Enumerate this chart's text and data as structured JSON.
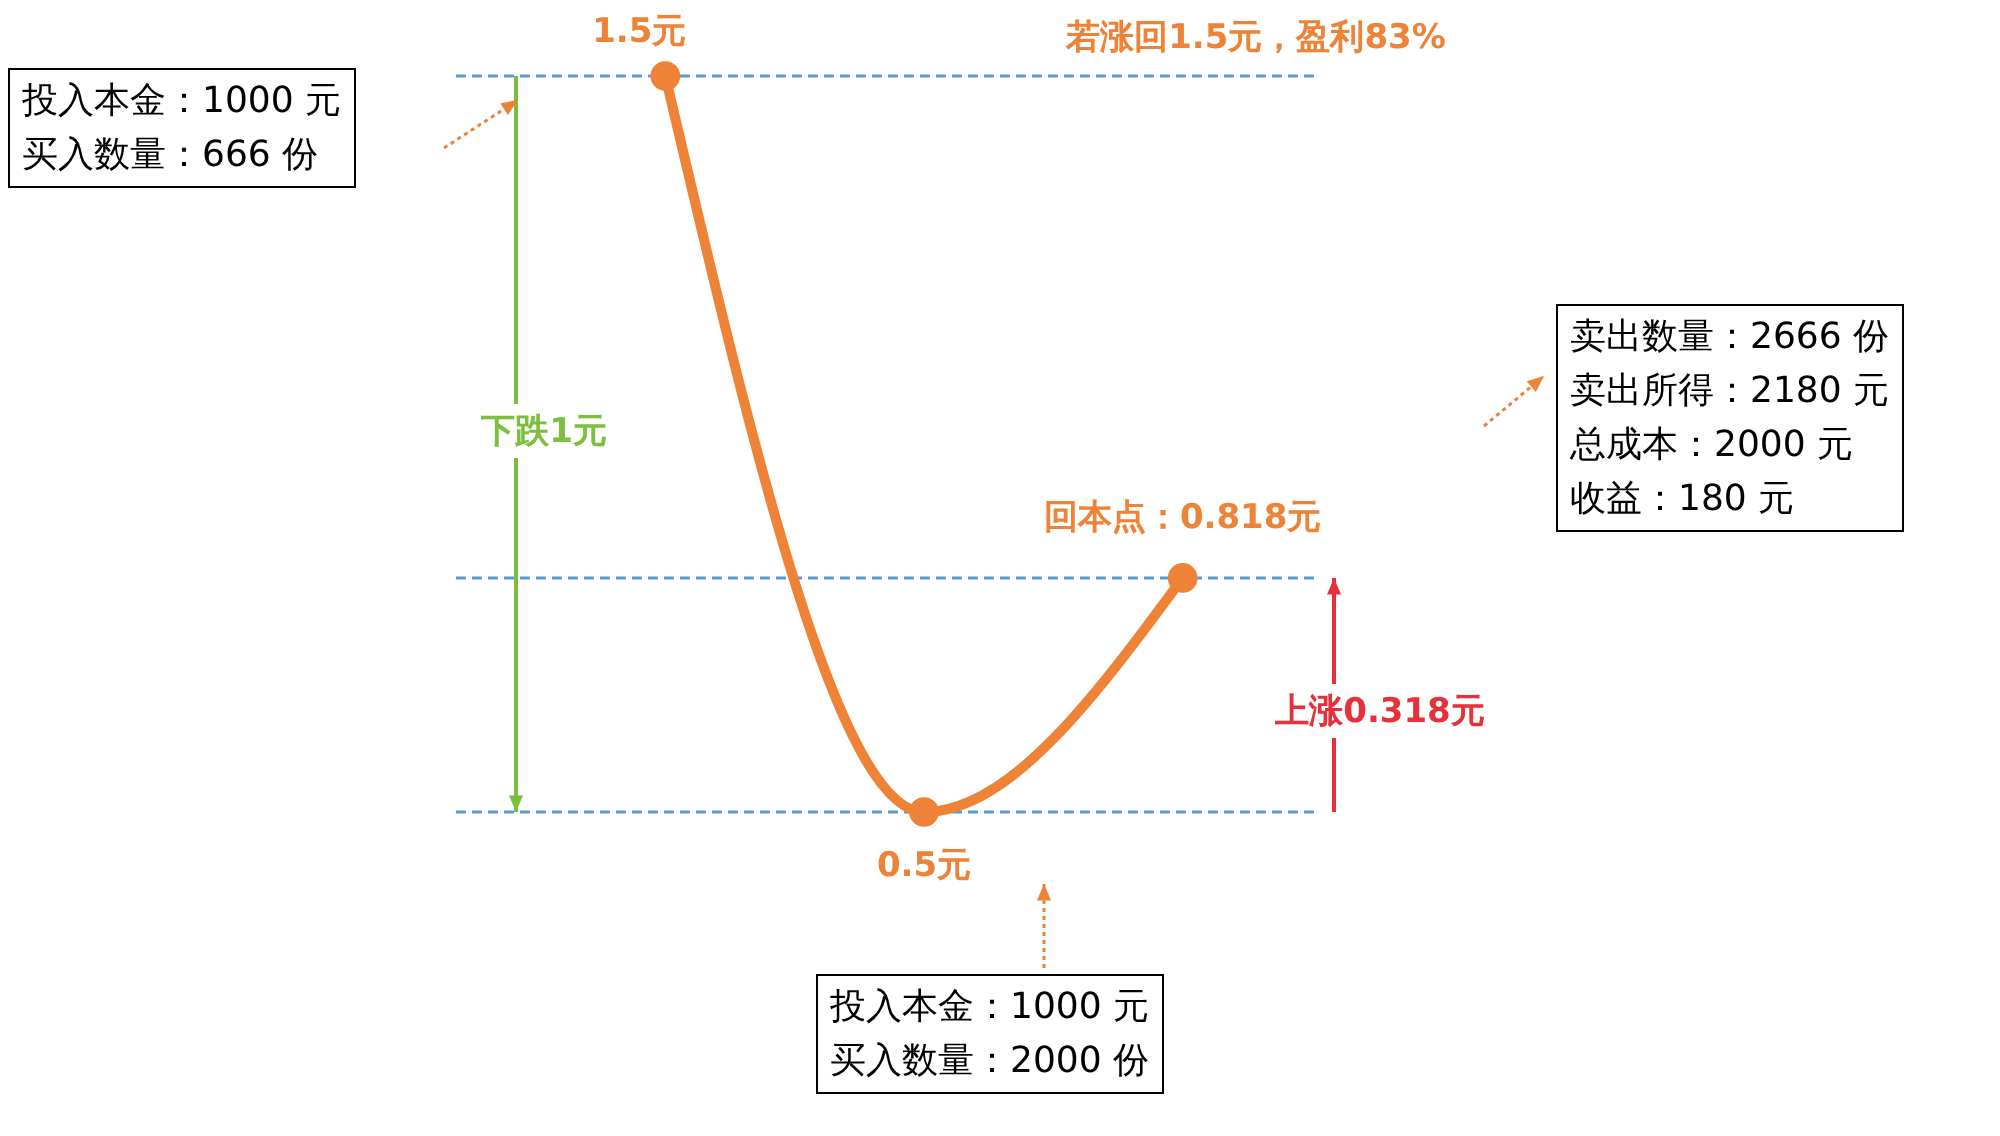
{
  "chart_data": {
    "type": "line",
    "categories": [
      null,
      null,
      null
    ],
    "series": [
      {
        "color": "#ee8236",
        "values": [
          1.5,
          0.5,
          0.818
        ],
        "value_labels": [
          "1.5元",
          "0.5元",
          "回本点：0.818元"
        ]
      }
    ],
    "marker": "circle",
    "line_style": "solid",
    "ref_lines": [
      {
        "axis": "y",
        "value": 1.5,
        "color": "#5b9bd5",
        "line_style": "dashed"
      },
      {
        "axis": "y",
        "value": 0.818,
        "color": "#5b9bd5",
        "line_style": "dashed"
      },
      {
        "axis": "y",
        "value": 0.5,
        "color": "#5b9bd5",
        "line_style": "dashed"
      }
    ],
    "annotations": [
      "若涨回1.5元，盈利83%",
      "投入本金：1000 元",
      "买入数量：666 份",
      "投入本金：1000 元",
      "买入数量：2000 份",
      "卖出数量：2666 份",
      "卖出所得：2180 元",
      "总成本：2000 元",
      "收益：180 元",
      "下跌1元",
      "上涨0.318元"
    ]
  }
}
